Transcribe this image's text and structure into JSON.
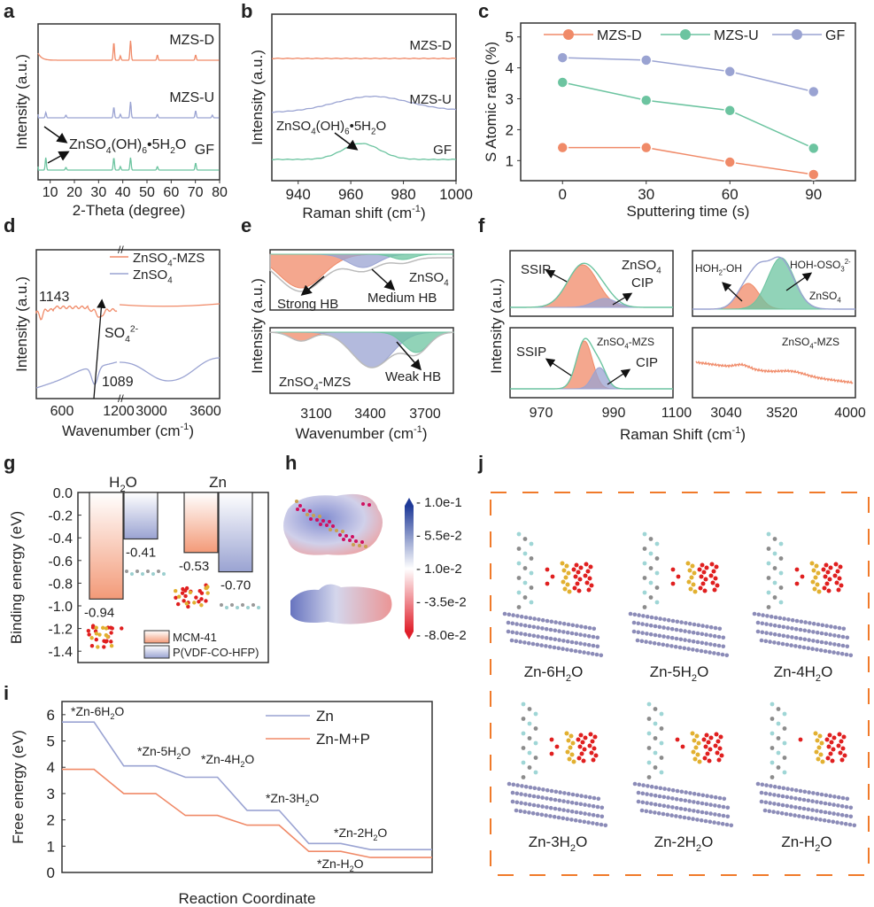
{
  "colors": {
    "orange": "#f08a68",
    "green": "#6cc4a0",
    "blue": "#9aa3d2",
    "border": "#333333",
    "dash": "#f07a2a",
    "zn_atom": "#8c8cb8",
    "o_atom": "#e01f1f",
    "s_atom": "#e2b030"
  },
  "panels": {
    "a": {
      "label": "a"
    },
    "b": {
      "label": "b"
    },
    "c": {
      "label": "c"
    },
    "d": {
      "label": "d"
    },
    "e": {
      "label": "e"
    },
    "f": {
      "label": "f"
    },
    "g": {
      "label": "g"
    },
    "h": {
      "label": "h"
    },
    "i": {
      "label": "i"
    },
    "j": {
      "label": "j"
    }
  },
  "chart_data": [
    {
      "id": "a",
      "type": "line",
      "title": "",
      "xlabel": "2-Theta (degree)",
      "ylabel": "Intensity (a.u.)",
      "xlim": [
        5,
        80
      ],
      "xticks": [
        10,
        20,
        30,
        40,
        50,
        60,
        70,
        80
      ],
      "series": [
        {
          "name": "MZS-D",
          "color": "orange",
          "peaks": [
            36.3,
            39.0,
            43.2,
            54.3,
            70.1
          ]
        },
        {
          "name": "MZS-U",
          "color": "blue",
          "peaks": [
            8.2,
            16.5,
            36.3,
            39.0,
            43.2,
            54.3,
            70.1,
            77.0
          ]
        },
        {
          "name": "GF",
          "color": "green",
          "peaks": [
            8.2,
            16.5,
            36.3,
            39.0,
            43.2,
            54.3,
            70.1
          ]
        }
      ],
      "annotation": "ZnSO4(OH)6•5H2O"
    },
    {
      "id": "b",
      "type": "line",
      "xlabel": "Raman shift (cm-1)",
      "ylabel": "Intensity (a.u.)",
      "xlim": [
        930,
        1000
      ],
      "xticks": [
        940,
        960,
        980,
        1000
      ],
      "series": [
        {
          "name": "MZS-D",
          "color": "orange",
          "peak_center": null
        },
        {
          "name": "MZS-U",
          "color": "blue",
          "peak_center": 968
        },
        {
          "name": "GF",
          "color": "green",
          "peak_center": 964
        }
      ],
      "annotation": "ZnSO4(OH)6•5H2O"
    },
    {
      "id": "c",
      "type": "line",
      "xlabel": "Sputtering time (s)",
      "ylabel": "S Atomic ratio (%)",
      "x": [
        0,
        30,
        60,
        90
      ],
      "xlim": [
        -15,
        105
      ],
      "ylim": [
        0.35,
        5.45
      ],
      "yticks": [
        1,
        2,
        3,
        4,
        5
      ],
      "legend": "top",
      "series": [
        {
          "name": "MZS-D",
          "color": "orange",
          "values": [
            1.42,
            1.42,
            0.95,
            0.55
          ]
        },
        {
          "name": "MZS-U",
          "color": "green",
          "values": [
            3.53,
            2.95,
            2.62,
            1.4
          ]
        },
        {
          "name": "GF",
          "color": "blue",
          "values": [
            4.33,
            4.25,
            3.88,
            3.23
          ]
        }
      ]
    },
    {
      "id": "d",
      "type": "line",
      "xlabel": "Wavenumber (cm-1)",
      "ylabel": "Intensity (a.u.)",
      "xticks": [
        "600",
        "1200",
        "3000",
        "3600"
      ],
      "broken_axis": true,
      "series": [
        {
          "name": "ZnSO4-MZS",
          "color": "orange"
        },
        {
          "name": "ZnSO4",
          "color": "blue"
        }
      ],
      "annotations": [
        "1143",
        "1089",
        "SO4 2-"
      ]
    },
    {
      "id": "e",
      "type": "area",
      "xlabel": "Wavenumber (cm-1)",
      "ylabel": "Intensity (a.u.)",
      "xlim": [
        3000,
        3800
      ],
      "xticks": [
        3100,
        3400,
        3700
      ],
      "subplots": [
        {
          "name": "ZnSO4",
          "labels": [
            "Strong HB",
            "Medium HB"
          ]
        },
        {
          "name": "ZnSO4-MZS",
          "labels": [
            "Weak HB"
          ]
        }
      ]
    },
    {
      "id": "f",
      "type": "area",
      "xlabel": "Raman Shift (cm-1)",
      "ylabel": "Intensity (a.u.)",
      "left_xticks": [
        "970",
        "990",
        "1100"
      ],
      "right_xticks": [
        "3040",
        "3520",
        "4000"
      ],
      "subplots": [
        {
          "name": "ZnSO4",
          "labels": [
            "SSIP",
            "CIP"
          ]
        },
        {
          "name": "ZnSO4",
          "labels": [
            "HOH2-OH",
            "HOH-OSO3 2-"
          ]
        },
        {
          "name": "ZnSO4-MZS",
          "labels": [
            "SSIP",
            "CIP"
          ]
        },
        {
          "name": "ZnSO4-MZS",
          "labels": []
        }
      ]
    },
    {
      "id": "g",
      "type": "bar",
      "ylabel": "Binding energy (eV)",
      "categories": [
        "H2O",
        "Zn"
      ],
      "ylim": [
        -1.5,
        0.0
      ],
      "yticks": [
        0.0,
        -0.2,
        -0.4,
        -0.6,
        -0.8,
        -1.0,
        -1.2,
        -1.4
      ],
      "legend": "bottom-right",
      "series": [
        {
          "name": "MCM-41",
          "color": "orange",
          "values": [
            -0.94,
            -0.53
          ]
        },
        {
          "name": "P(VDF-CO-HFP)",
          "color": "blue",
          "values": [
            -0.41,
            -0.7
          ]
        }
      ]
    },
    {
      "id": "h",
      "type": "heatmap",
      "colorbar_ticks": [
        "1.0e-1",
        "5.5e-2",
        "1.0e-2",
        "-3.5e-2",
        "-8.0e-2"
      ],
      "colorbar_range": [
        -0.08,
        0.1
      ]
    },
    {
      "id": "i",
      "type": "line",
      "xlabel": "Reaction Coordinate",
      "ylabel": "Free energy (eV)",
      "ylim": [
        0,
        6.5
      ],
      "yticks": [
        0,
        1,
        2,
        3,
        4,
        5,
        6
      ],
      "states": [
        "*Zn-6H2O",
        "*Zn-5H2O",
        "*Zn-4H2O",
        "*Zn-3H2O",
        "*Zn-2H2O",
        "*Zn-H2O"
      ],
      "legend": "top-right",
      "series": [
        {
          "name": "Zn",
          "color": "blue",
          "values": [
            5.72,
            4.05,
            3.62,
            2.36,
            1.1,
            0.87
          ]
        },
        {
          "name": "Zn-M+P",
          "color": "orange",
          "values": [
            3.92,
            3.0,
            2.17,
            1.8,
            0.8,
            0.57
          ]
        }
      ]
    }
  ],
  "panel_j": {
    "structures": [
      "Zn-6H2O",
      "Zn-5H2O",
      "Zn-4H2O",
      "Zn-3H2O",
      "Zn-2H2O",
      "Zn-H2O"
    ]
  }
}
